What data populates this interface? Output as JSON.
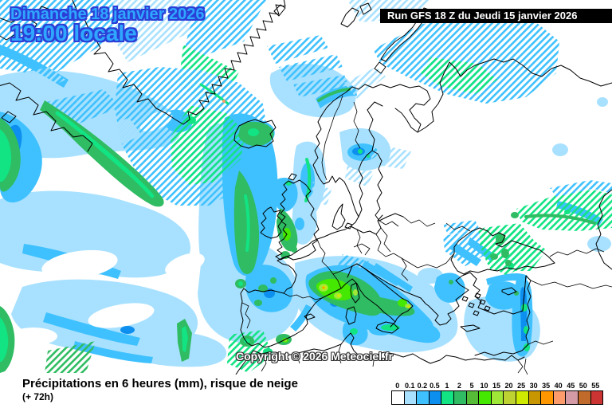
{
  "map": {
    "date_line1": "Dimanche 18 janvier 2026",
    "date_line2": "19:00 locale",
    "run_info": "Run GFS 18 Z du Jeudi 15 janvier 2026",
    "copyright": "Copyright © 2026 Meteociel.fr"
  },
  "caption": {
    "title": "Précipitations en 6 heures (mm), risque de neige",
    "subtitle": "(+ 72h)"
  },
  "legend": {
    "labels": [
      "0",
      "0.1",
      "0.2",
      "0.5",
      "1",
      "2",
      "5",
      "10",
      "15",
      "20",
      "25",
      "30",
      "35",
      "40",
      "45",
      "50",
      "55"
    ],
    "colors": [
      "#FFFFFF",
      "#A8E1FF",
      "#3FC1FF",
      "#0D8FEF",
      "#12E383",
      "#2FBC62",
      "#56BC38",
      "#44E800",
      "#A0E837",
      "#BED331",
      "#CFEA00",
      "#C89600",
      "#FF9800",
      "#FC9C6C",
      "#D49AA6",
      "#C06A2C",
      "#CC3333"
    ]
  },
  "colors": {
    "date_text": "#2FA6FF",
    "date_outline": "#2B3FD6",
    "run_bg": "#000000",
    "run_text": "#FFFFFF",
    "coastline": "#000000",
    "precip_light": "#A8E1FF",
    "precip_moderate": "#3FC1FF",
    "precip_strong": "#0D8FEF",
    "precip_green": "#2FBC62",
    "precip_intense": "#CFEA00"
  }
}
